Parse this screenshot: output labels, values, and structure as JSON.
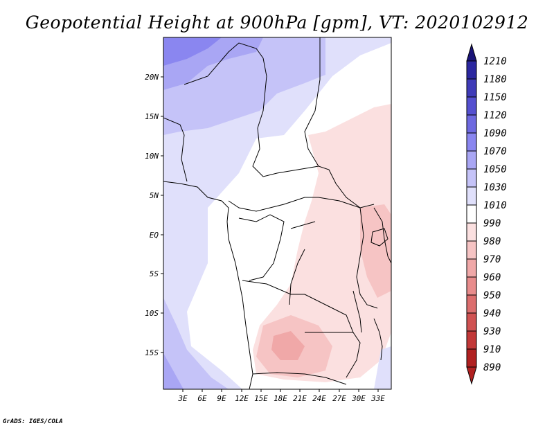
{
  "title": "Geopotential Height at 900hPa [gpm], VT: 2020102912",
  "credit": "GrADS: IGES/COLA",
  "map": {
    "lat_ticks": [
      "20N",
      "15N",
      "10N",
      "5N",
      "EQ",
      "5S",
      "10S",
      "15S"
    ],
    "lon_ticks": [
      "3E",
      "6E",
      "9E",
      "12E",
      "15E",
      "18E",
      "21E",
      "24E",
      "27E",
      "30E",
      "33E"
    ]
  },
  "colorbar": {
    "levels": [
      "1210",
      "1180",
      "1150",
      "1120",
      "1090",
      "1070",
      "1050",
      "1030",
      "1010",
      "990",
      "980",
      "970",
      "960",
      "950",
      "940",
      "930",
      "910",
      "890"
    ],
    "colors": [
      "#1a1478",
      "#2b27a0",
      "#3f3bb8",
      "#5550d0",
      "#6e69e0",
      "#8a86f0",
      "#a9a6f4",
      "#c5c3f8",
      "#e0e0fb",
      "#ffffff",
      "#fbe0e0",
      "#f6c4c4",
      "#f0a8a8",
      "#e88c8c",
      "#dc6e6e",
      "#d05252",
      "#c23838",
      "#b02020"
    ]
  }
}
